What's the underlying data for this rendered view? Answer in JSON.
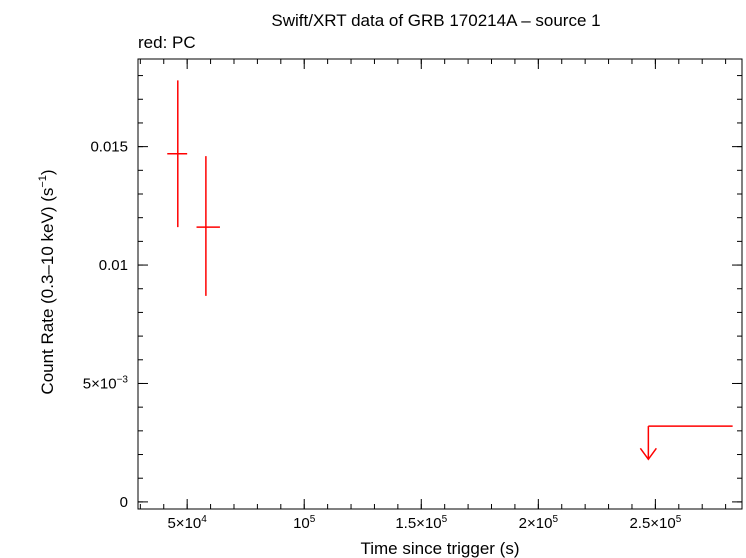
{
  "colors": {
    "axes": "#000000",
    "series": "#ff0000",
    "background": "#ffffff"
  },
  "chart_data": {
    "type": "scatter",
    "title": "Swift/XRT data of GRB 170214A – source 1",
    "subtitle": "red: PC",
    "xlabel": "Time since trigger (s)",
    "ylabel_main": "Count Rate (0.3–10 keV) (s",
    "ylabel_sup": "−1",
    "ylabel_end": ")",
    "xlim": [
      29000,
      287000
    ],
    "ylim": [
      -0.0003,
      0.0187
    ],
    "grid": false,
    "x_ticks": [
      {
        "value": 50000,
        "base": "5×10",
        "exp": "4"
      },
      {
        "value": 100000,
        "base": "10",
        "exp": "5"
      },
      {
        "value": 150000,
        "base": "1.5×10",
        "exp": "5"
      },
      {
        "value": 200000,
        "base": "2×10",
        "exp": "5"
      },
      {
        "value": 250000,
        "base": "2.5×10",
        "exp": "5"
      }
    ],
    "y_ticks": [
      {
        "value": 0,
        "base": "0",
        "exp": ""
      },
      {
        "value": 0.005,
        "base": "5×10",
        "exp": "−3"
      },
      {
        "value": 0.01,
        "base": "0.01",
        "exp": ""
      },
      {
        "value": 0.015,
        "base": "0.015",
        "exp": ""
      }
    ],
    "x_minor_step": 10000,
    "y_minor_step": 0.001,
    "series": [
      {
        "points": [
          {
            "x": 46000,
            "xlo": 41500,
            "xhi": 50000,
            "y": 0.0147,
            "ylo": 0.0116,
            "yhi": 0.0178
          },
          {
            "x": 58000,
            "xlo": 54000,
            "xhi": 64000,
            "y": 0.0116,
            "ylo": 0.0087,
            "yhi": 0.0146
          }
        ],
        "upper_limits": [
          {
            "x": 247000,
            "xlo": 247000,
            "xhi": 283000,
            "y": 0.0032,
            "arrow_to": 0.0018
          }
        ]
      }
    ]
  }
}
